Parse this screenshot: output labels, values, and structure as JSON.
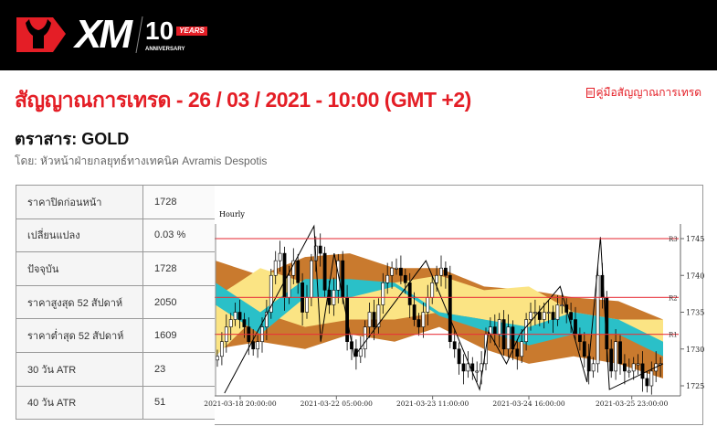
{
  "header": {
    "logo_text": "XM",
    "anniversary_number": "10",
    "anniversary_years": "YEARS",
    "anniversary_label": "ANNIVERSARY"
  },
  "title": "สัญญาณการเทรด - 26 / 03 / 2021 - 10:00 (GMT +2)",
  "guide_link": "คู่มือสัญญาณการเทรด",
  "instrument": "ตราสาร: GOLD",
  "byline": "โดย: หัวหน้าฝ่ายกลยุทธ์ทางเทคนิค Avramis Despotis",
  "stats": [
    {
      "label": "ราคาปิดก่อนหน้า",
      "value": "1728"
    },
    {
      "label": "เปลี่ยนแปลง",
      "value": "0.03 %"
    },
    {
      "label": "ปัจจุบัน",
      "value": "1728"
    },
    {
      "label": "ราคาสูงสุด 52 สัปดาห์",
      "value": "2050"
    },
    {
      "label": "ราคาต่ำสุด 52 สัปดาห์",
      "value": "1609"
    },
    {
      "label": "30 วัน ATR",
      "value": "23"
    },
    {
      "label": "40 วัน ATR",
      "value": "51"
    }
  ],
  "chart_data": {
    "type": "candlestick",
    "title": "Hourly",
    "ylim": [
      1723,
      1747
    ],
    "yticks": [
      1725,
      1730,
      1735,
      1740,
      1745
    ],
    "xticks": [
      {
        "index": 5.5,
        "label": "2021-03-18 20:00:00"
      },
      {
        "index": 27,
        "label": "2021-03-22 05:00:00"
      },
      {
        "index": 48.5,
        "label": "2021-03-23 11:00:00"
      },
      {
        "index": 70,
        "label": "2021-03-24 16:00:00"
      },
      {
        "index": 93,
        "label": "2021-03-25 23:00:00"
      }
    ],
    "levels": [
      {
        "name": "R3",
        "value": 1745
      },
      {
        "name": "R2",
        "value": 1737
      },
      {
        "name": "R1",
        "value": 1732
      }
    ],
    "level_color": "#e8313a",
    "closes": [
      1729,
      1731,
      1733,
      1734,
      1735,
      1734,
      1733,
      1731,
      1730,
      1731,
      1733,
      1735,
      1740,
      1742,
      1743,
      1737,
      1740,
      1742,
      1739,
      1735,
      1737,
      1742,
      1744,
      1743,
      1738,
      1736,
      1738,
      1742,
      1737,
      1731,
      1730,
      1729,
      1730,
      1733,
      1735,
      1733,
      1736,
      1739,
      1740,
      1741,
      1741,
      1740,
      1739,
      1736,
      1734,
      1733,
      1735,
      1737,
      1739,
      1740,
      1741,
      1740,
      1731,
      1730,
      1728,
      1727,
      1728,
      1727,
      1727,
      1728,
      1732,
      1733,
      1732,
      1734,
      1730,
      1733,
      1730,
      1729,
      1731,
      1734,
      1735,
      1735,
      1734,
      1735,
      1735,
      1734,
      1736,
      1736,
      1735,
      1734,
      1732,
      1731,
      1729,
      1727,
      1728,
      1740,
      1737,
      1730,
      1727,
      1731,
      1728,
      1727,
      1727,
      1728,
      1728,
      1726,
      1725,
      1727,
      1728,
      1728
    ],
    "zigzag": [
      [
        2,
        1724
      ],
      [
        22,
        1746.7
      ],
      [
        23.5,
        1731
      ],
      [
        26.5,
        1743
      ],
      [
        31,
        1729
      ],
      [
        47,
        1742
      ],
      [
        59,
        1724.5
      ],
      [
        61,
        1732.4
      ],
      [
        65,
        1728
      ],
      [
        68,
        1732
      ],
      [
        77,
        1738.5
      ],
      [
        83,
        1725.5
      ],
      [
        86,
        1745.2
      ],
      [
        88,
        1724.5
      ],
      [
        100,
        1728
      ]
    ],
    "bands": {
      "index": [
        0,
        10,
        20,
        30,
        40,
        50,
        60,
        70,
        80,
        90,
        100
      ],
      "outer_top": [
        1742,
        1740,
        1742.5,
        1743,
        1741,
        1741,
        1738.5,
        1738,
        1737,
        1736.5,
        1734
      ],
      "outer_bottom": [
        1730,
        1731,
        1730,
        1732,
        1731,
        1733,
        1730,
        1728,
        1729,
        1728,
        1726
      ],
      "yellow_top": [
        1737,
        1741,
        1739,
        1738,
        1739,
        1740,
        1738,
        1738.5,
        1735,
        1734,
        1734
      ],
      "yellow_bottom": [
        1729,
        1735,
        1733,
        1734,
        1734,
        1735,
        1734,
        1731,
        1732,
        1732,
        1730
      ],
      "cyan_top": [
        1739,
        1735,
        1739.5,
        1739.5,
        1739,
        1735,
        1734,
        1733,
        1735,
        1734,
        1731
      ],
      "cyan_bottom": [
        1736,
        1732,
        1737,
        1737,
        1738.5,
        1734.5,
        1732.5,
        1730.5,
        1732,
        1732,
        1729
      ],
      "colors": {
        "outer": "#c97a2e",
        "yellow": "#fbe484",
        "cyan": "#2ac0c8"
      }
    }
  }
}
